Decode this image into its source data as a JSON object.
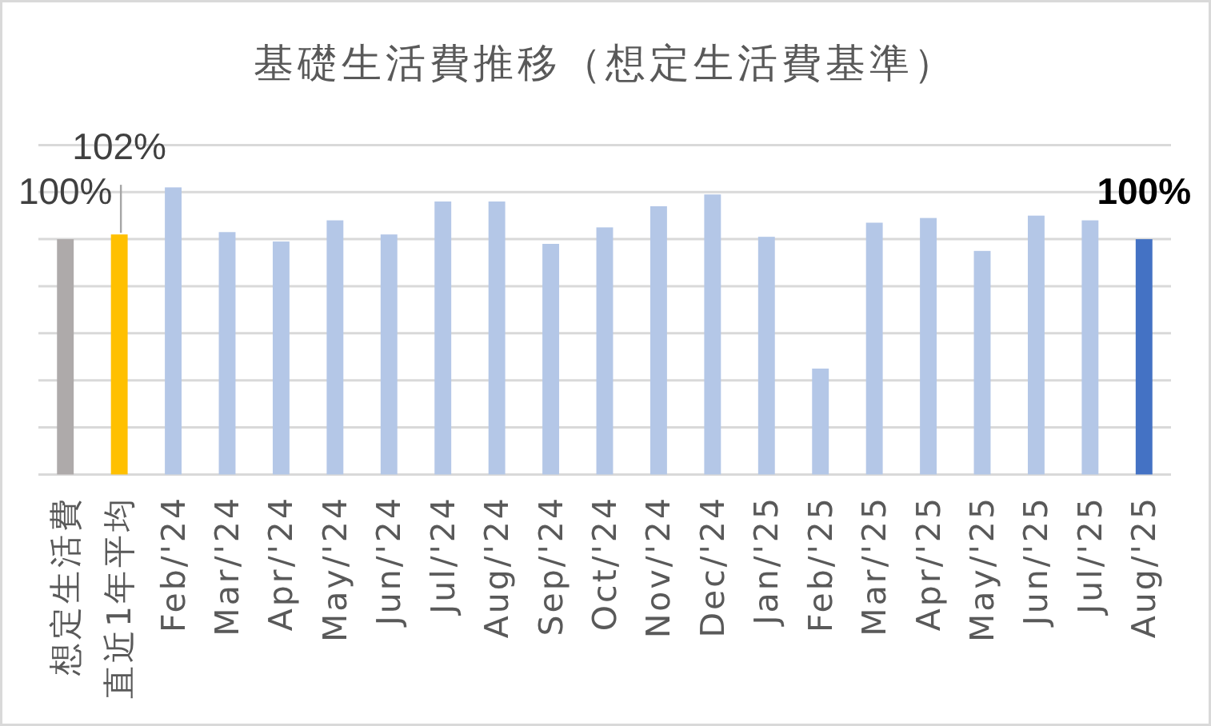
{
  "chart_data": {
    "type": "bar",
    "title": "基礎生活費推移（想定生活費基準）",
    "categories": [
      "想定生活費",
      "直近1年平均",
      "Feb/'24",
      "Mar/'24",
      "Apr/'24",
      "May/'24",
      "Jun/'24",
      "Jul/'24",
      "Aug/'24",
      "Sep/'24",
      "Oct/'24",
      "Nov/'24",
      "Dec/'24",
      "Jan/'25",
      "Feb/'25",
      "Mar/'25",
      "Apr/'25",
      "May/'25",
      "Jun/'25",
      "Jul/'25",
      "Aug/'25"
    ],
    "values": [
      100,
      102,
      122,
      103,
      99,
      108,
      102,
      116,
      116,
      98,
      105,
      114,
      119,
      101,
      45,
      107,
      109,
      95,
      110,
      108,
      100
    ],
    "colors": [
      "#aeaaaa",
      "#ffc000",
      "#b4c7e7",
      "#b4c7e7",
      "#b4c7e7",
      "#b4c7e7",
      "#b4c7e7",
      "#b4c7e7",
      "#b4c7e7",
      "#b4c7e7",
      "#b4c7e7",
      "#b4c7e7",
      "#b4c7e7",
      "#b4c7e7",
      "#b4c7e7",
      "#b4c7e7",
      "#b4c7e7",
      "#b4c7e7",
      "#b4c7e7",
      "#b4c7e7",
      "#4472c4"
    ],
    "value_labels": [
      "100%",
      "102%",
      null,
      null,
      null,
      null,
      null,
      null,
      null,
      null,
      null,
      null,
      null,
      null,
      null,
      null,
      null,
      null,
      null,
      null,
      "100%"
    ],
    "ylim": [
      0,
      140
    ],
    "yticks": [
      {
        "value": 0,
        "label": null
      },
      {
        "value": 20,
        "label": null
      },
      {
        "value": 40,
        "label": null
      },
      {
        "value": 60,
        "label": null
      },
      {
        "value": 80,
        "label": null
      },
      {
        "value": 100,
        "label": null
      },
      {
        "value": 120,
        "label": null
      },
      {
        "value": 140,
        "label": null
      }
    ],
    "grid": "y",
    "tick_labels": "x"
  }
}
